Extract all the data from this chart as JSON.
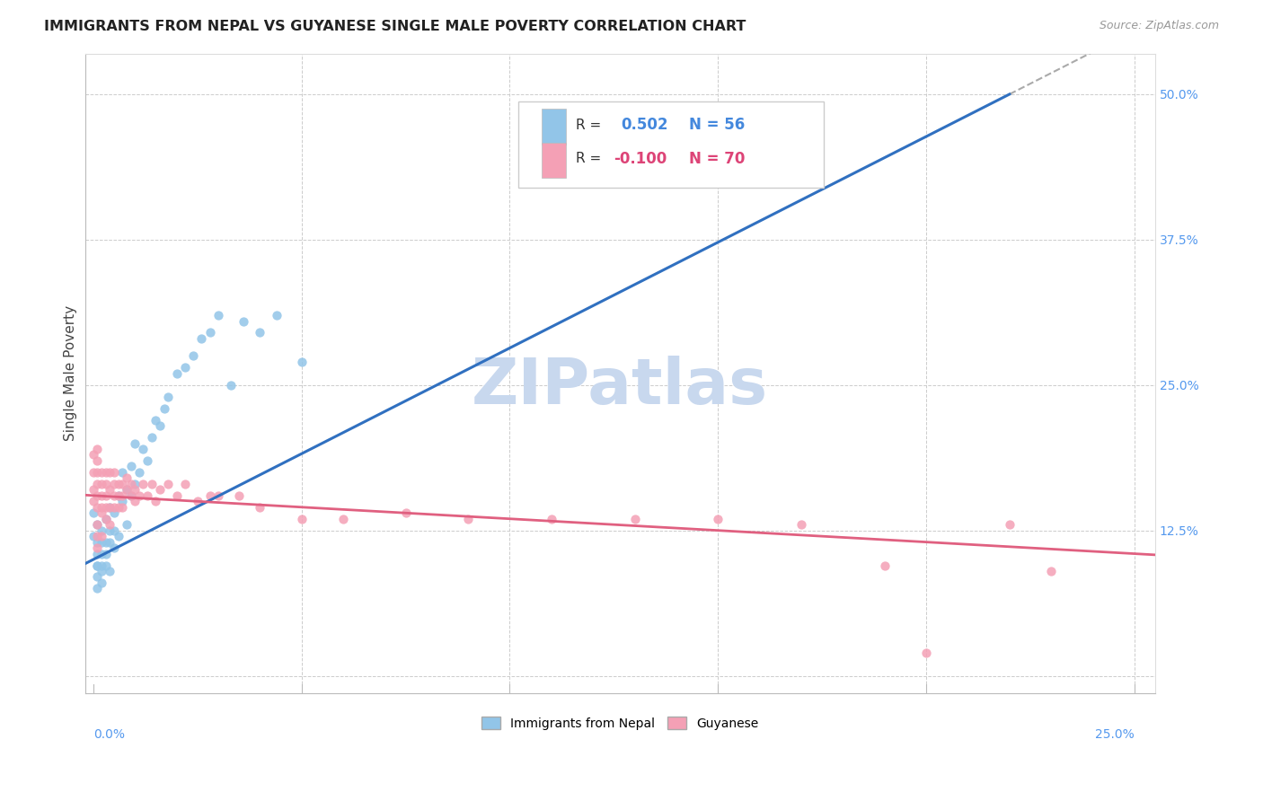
{
  "title": "IMMIGRANTS FROM NEPAL VS GUYANESE SINGLE MALE POVERTY CORRELATION CHART",
  "source": "Source: ZipAtlas.com",
  "ylabel": "Single Male Poverty",
  "blue_color": "#92C5E8",
  "pink_color": "#F4A0B5",
  "blue_line_color": "#3070C0",
  "pink_line_color": "#E06080",
  "dash_color": "#AAAAAA",
  "watermark_color": "#C8D8EE",
  "right_tick_color": "#5599EE",
  "legend_label1": "Immigrants from Nepal",
  "legend_label2": "Guyanese",
  "blue_line": [
    0.0,
    0.1,
    0.22,
    0.5
  ],
  "pink_line": [
    0.0,
    0.155,
    0.25,
    0.105
  ],
  "xlim": [
    -0.002,
    0.255
  ],
  "ylim": [
    -0.015,
    0.535
  ],
  "nepal_x": [
    0.0,
    0.0,
    0.001,
    0.001,
    0.001,
    0.001,
    0.001,
    0.001,
    0.001,
    0.002,
    0.002,
    0.002,
    0.002,
    0.002,
    0.002,
    0.003,
    0.003,
    0.003,
    0.003,
    0.004,
    0.004,
    0.004,
    0.004,
    0.005,
    0.005,
    0.005,
    0.006,
    0.006,
    0.007,
    0.007,
    0.008,
    0.008,
    0.009,
    0.009,
    0.01,
    0.01,
    0.011,
    0.012,
    0.013,
    0.014,
    0.015,
    0.016,
    0.017,
    0.018,
    0.02,
    0.022,
    0.024,
    0.026,
    0.028,
    0.03,
    0.033,
    0.036,
    0.04,
    0.044,
    0.05,
    0.12
  ],
  "nepal_y": [
    0.14,
    0.12,
    0.095,
    0.105,
    0.115,
    0.13,
    0.095,
    0.085,
    0.075,
    0.095,
    0.115,
    0.105,
    0.125,
    0.09,
    0.08,
    0.135,
    0.115,
    0.095,
    0.105,
    0.125,
    0.115,
    0.145,
    0.09,
    0.125,
    0.14,
    0.11,
    0.155,
    0.12,
    0.15,
    0.175,
    0.16,
    0.13,
    0.155,
    0.18,
    0.165,
    0.2,
    0.175,
    0.195,
    0.185,
    0.205,
    0.22,
    0.215,
    0.23,
    0.24,
    0.26,
    0.265,
    0.275,
    0.29,
    0.295,
    0.31,
    0.25,
    0.305,
    0.295,
    0.31,
    0.27,
    0.48
  ],
  "guyanese_x": [
    0.0,
    0.0,
    0.0,
    0.0,
    0.001,
    0.001,
    0.001,
    0.001,
    0.001,
    0.001,
    0.001,
    0.001,
    0.001,
    0.002,
    0.002,
    0.002,
    0.002,
    0.002,
    0.002,
    0.003,
    0.003,
    0.003,
    0.003,
    0.003,
    0.004,
    0.004,
    0.004,
    0.004,
    0.005,
    0.005,
    0.005,
    0.005,
    0.006,
    0.006,
    0.006,
    0.007,
    0.007,
    0.007,
    0.008,
    0.008,
    0.009,
    0.009,
    0.01,
    0.01,
    0.011,
    0.012,
    0.013,
    0.014,
    0.015,
    0.016,
    0.018,
    0.02,
    0.022,
    0.025,
    0.028,
    0.03,
    0.035,
    0.04,
    0.05,
    0.06,
    0.075,
    0.09,
    0.11,
    0.13,
    0.15,
    0.17,
    0.19,
    0.2,
    0.22,
    0.23
  ],
  "guyanese_y": [
    0.15,
    0.16,
    0.175,
    0.19,
    0.155,
    0.165,
    0.145,
    0.175,
    0.185,
    0.195,
    0.13,
    0.12,
    0.11,
    0.155,
    0.165,
    0.145,
    0.175,
    0.14,
    0.12,
    0.165,
    0.175,
    0.155,
    0.145,
    0.135,
    0.16,
    0.175,
    0.145,
    0.13,
    0.165,
    0.155,
    0.175,
    0.145,
    0.165,
    0.155,
    0.145,
    0.165,
    0.155,
    0.145,
    0.16,
    0.17,
    0.165,
    0.155,
    0.16,
    0.15,
    0.155,
    0.165,
    0.155,
    0.165,
    0.15,
    0.16,
    0.165,
    0.155,
    0.165,
    0.15,
    0.155,
    0.155,
    0.155,
    0.145,
    0.135,
    0.135,
    0.14,
    0.135,
    0.135,
    0.135,
    0.135,
    0.13,
    0.095,
    0.02,
    0.13,
    0.09
  ]
}
